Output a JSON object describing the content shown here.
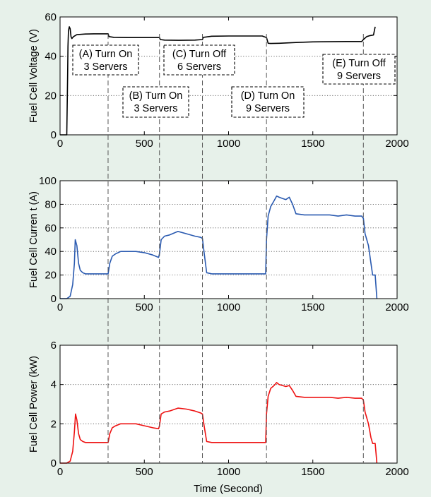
{
  "colors": {
    "background": "#e7f1ea",
    "voltage": "#000000",
    "current": "#2a5ab0",
    "power": "#ee1111",
    "gridline": "#555555"
  },
  "events": [
    {
      "x": 285,
      "label": "(A) Turn On"
    },
    {
      "x": 590,
      "label": "(B) Turn On"
    },
    {
      "x": 845,
      "label": "(C) Turn Off"
    },
    {
      "x": 1225,
      "label": "(D) Turn On"
    },
    {
      "x": 1800,
      "label": "(E) Turn Off"
    }
  ],
  "chart_data": [
    {
      "type": "line",
      "ylabel": "Fuel Cell Voltage (V)",
      "xlim": [
        0,
        2000
      ],
      "ylim": [
        0,
        60
      ],
      "xticks": [
        "0",
        "500",
        "1000",
        "1500",
        "2000"
      ],
      "yticks": [
        "0",
        "20",
        "40",
        "60"
      ],
      "grid": "y-dotted",
      "series": [
        {
          "color": "#000000",
          "x": [
            0,
            40,
            45,
            47,
            50,
            55,
            60,
            65,
            70,
            80,
            100,
            150,
            200,
            260,
            285,
            290,
            320,
            400,
            500,
            590,
            595,
            620,
            700,
            800,
            845,
            850,
            900,
            1000,
            1100,
            1200,
            1225,
            1235,
            1250,
            1300,
            1400,
            1500,
            1600,
            1700,
            1790,
            1800,
            1820,
            1840,
            1860,
            1870
          ],
          "y": [
            0,
            0,
            30,
            45,
            53,
            55,
            54,
            50,
            49,
            50,
            51,
            51.3,
            51.4,
            51.4,
            51.4,
            50,
            49.6,
            49.5,
            49.5,
            49.5,
            48.5,
            48.2,
            48.1,
            48.2,
            48.5,
            49.6,
            50.2,
            50.3,
            50.3,
            50.3,
            49.5,
            46.6,
            46.5,
            46.6,
            47,
            47.3,
            47.4,
            47.5,
            47.5,
            48.5,
            50,
            50.5,
            50.8,
            55
          ]
        }
      ]
    },
    {
      "type": "line",
      "ylabel": "Fuel Cell Curren t (A)",
      "xlim": [
        0,
        2000
      ],
      "ylim": [
        0,
        100
      ],
      "xticks": [
        "0",
        "500",
        "1000",
        "1500",
        "2000"
      ],
      "yticks": [
        "0",
        "20",
        "40",
        "60",
        "80",
        "100"
      ],
      "grid": "y-dotted",
      "series": [
        {
          "color": "#2a5ab0",
          "x": [
            0,
            40,
            60,
            75,
            85,
            90,
            100,
            110,
            120,
            135,
            150,
            200,
            250,
            280,
            285,
            295,
            310,
            330,
            360,
            400,
            450,
            500,
            550,
            585,
            590,
            600,
            620,
            650,
            700,
            750,
            800,
            835,
            845,
            855,
            870,
            900,
            1000,
            1100,
            1200,
            1220,
            1225,
            1235,
            1250,
            1270,
            1285,
            1300,
            1320,
            1340,
            1360,
            1380,
            1400,
            1450,
            1500,
            1550,
            1600,
            1650,
            1700,
            1750,
            1790,
            1800,
            1810,
            1830,
            1845,
            1855,
            1870,
            1875,
            1880
          ],
          "y": [
            0,
            0,
            2,
            12,
            30,
            50,
            45,
            30,
            24,
            22,
            21,
            21,
            21,
            21,
            21,
            30,
            36,
            38,
            40,
            40,
            40,
            39,
            37,
            35,
            38,
            50,
            53,
            54,
            57,
            55,
            53,
            52,
            51,
            39,
            22,
            21,
            21,
            21,
            21,
            21,
            50,
            70,
            78,
            83,
            87,
            86,
            85,
            84,
            86,
            80,
            72,
            71,
            71,
            71,
            71,
            70,
            71,
            70,
            70,
            68,
            55,
            45,
            30,
            20,
            20,
            10,
            0
          ]
        }
      ]
    },
    {
      "type": "line",
      "ylabel": "Fuel Cell Power (kW)",
      "xlabel": "Time (Second)",
      "xlim": [
        0,
        2000
      ],
      "ylim": [
        0,
        6
      ],
      "xticks": [
        "0",
        "500",
        "1000",
        "1500",
        "2000"
      ],
      "yticks": [
        "0",
        "2",
        "4",
        "6"
      ],
      "grid": "y-dotted",
      "series": [
        {
          "color": "#ee1111",
          "x": [
            0,
            40,
            60,
            75,
            85,
            92,
            100,
            110,
            120,
            135,
            150,
            200,
            250,
            280,
            285,
            295,
            310,
            330,
            360,
            400,
            450,
            500,
            550,
            585,
            590,
            600,
            620,
            650,
            700,
            750,
            800,
            835,
            845,
            855,
            870,
            900,
            1000,
            1100,
            1200,
            1220,
            1225,
            1235,
            1250,
            1270,
            1285,
            1300,
            1320,
            1340,
            1360,
            1380,
            1400,
            1450,
            1500,
            1550,
            1600,
            1650,
            1700,
            1750,
            1790,
            1800,
            1810,
            1830,
            1845,
            1855,
            1870,
            1875,
            1880
          ],
          "y": [
            0,
            0,
            0.1,
            0.6,
            1.6,
            2.5,
            2.2,
            1.5,
            1.2,
            1.1,
            1.05,
            1.05,
            1.05,
            1.05,
            1.05,
            1.5,
            1.8,
            1.9,
            2.0,
            2.0,
            2.0,
            1.9,
            1.8,
            1.75,
            1.9,
            2.5,
            2.6,
            2.65,
            2.8,
            2.75,
            2.65,
            2.55,
            2.5,
            1.9,
            1.1,
            1.05,
            1.05,
            1.05,
            1.05,
            1.05,
            2.5,
            3.4,
            3.8,
            3.95,
            4.1,
            4.0,
            3.95,
            3.9,
            3.95,
            3.7,
            3.4,
            3.35,
            3.35,
            3.35,
            3.35,
            3.3,
            3.35,
            3.3,
            3.3,
            3.2,
            2.6,
            2.0,
            1.3,
            1.0,
            1.0,
            0.5,
            0
          ]
        }
      ]
    }
  ],
  "annotations": [
    {
      "lines": [
        "(A) Turn On",
        "3 Servers"
      ]
    },
    {
      "lines": [
        "(B) Turn On",
        "3 Servers"
      ]
    },
    {
      "lines": [
        "(C) Turn Off",
        "6 Servers"
      ]
    },
    {
      "lines": [
        "(D) Turn On",
        "9 Servers"
      ]
    },
    {
      "lines": [
        "(E) Turn Off",
        "9 Servers"
      ]
    }
  ]
}
